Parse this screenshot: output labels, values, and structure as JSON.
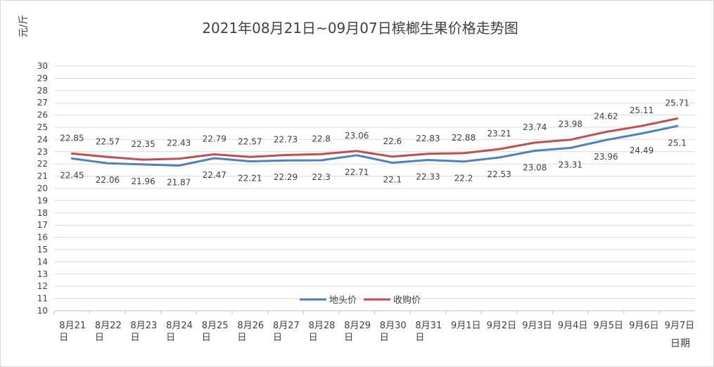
{
  "chart_data": {
    "type": "line",
    "title": "2021年08月21日~09月07日槟榔生果价格走势图",
    "ylabel": "元/斤",
    "xlabel": "日期",
    "ylim": [
      10,
      30
    ],
    "yticks": [
      10,
      11,
      12,
      13,
      14,
      15,
      16,
      17,
      18,
      19,
      20,
      21,
      22,
      23,
      24,
      25,
      26,
      27,
      28,
      29,
      30
    ],
    "grid": true,
    "legend_position": "bottom-center",
    "categories": [
      [
        "8月21",
        "日"
      ],
      [
        "8月22",
        "日"
      ],
      [
        "8月23",
        "日"
      ],
      [
        "8月24",
        "日"
      ],
      [
        "8月25",
        "日"
      ],
      [
        "8月26",
        "日"
      ],
      [
        "8月27",
        "日"
      ],
      [
        "8月28",
        "日"
      ],
      [
        "8月29",
        "日"
      ],
      [
        "8月30",
        "日"
      ],
      [
        "8月31",
        "日"
      ],
      [
        "9月1日"
      ],
      [
        "9月2日"
      ],
      [
        "9月3日"
      ],
      [
        "9月4日"
      ],
      [
        "9月5日"
      ],
      [
        "9月6日"
      ],
      [
        "9月7日"
      ]
    ],
    "series": [
      {
        "name": "地头价",
        "color": "#4f81bd",
        "label_position": "below",
        "values": [
          22.45,
          22.06,
          21.96,
          21.87,
          22.47,
          22.21,
          22.29,
          22.3,
          22.71,
          22.1,
          22.33,
          22.2,
          22.53,
          23.08,
          23.31,
          23.96,
          24.49,
          25.1
        ],
        "labels": [
          "22.45",
          "22.06",
          "21.96",
          "21.87",
          "22.47",
          "22.21",
          "22.29",
          "22.3",
          "22.71",
          "22.1",
          "22.33",
          "22.2",
          "22.53",
          "23.08",
          "23.31",
          "23.96",
          "24.49",
          "25.1"
        ]
      },
      {
        "name": "收购价",
        "color": "#c0504d",
        "label_position": "above",
        "values": [
          22.85,
          22.57,
          22.35,
          22.43,
          22.79,
          22.57,
          22.73,
          22.8,
          23.06,
          22.6,
          22.83,
          22.88,
          23.21,
          23.74,
          23.98,
          24.62,
          25.11,
          25.71
        ],
        "labels": [
          "22.85",
          "22.57",
          "22.35",
          "22.43",
          "22.79",
          "22.57",
          "22.73",
          "22.8",
          "23.06",
          "22.6",
          "22.83",
          "22.88",
          "23.21",
          "23.74",
          "23.98",
          "24.62",
          "25.11",
          "25.71"
        ]
      }
    ]
  }
}
